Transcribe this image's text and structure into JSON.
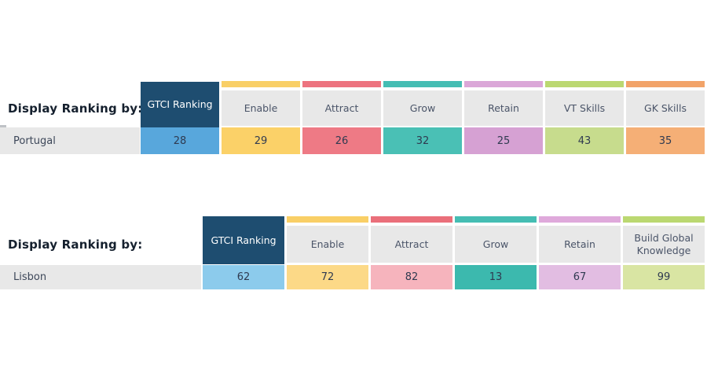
{
  "background": "#ffffff",
  "tables": [
    {
      "label": "Display Ranking by:",
      "row_label": "Portugal",
      "selected_column": "GTCI Ranking",
      "columns": [
        {
          "id": "gtci-ranking",
          "label": "GTCI Ranking",
          "value": "28",
          "selected": true,
          "header_bg": "#1e4d70",
          "value_bg": "#58a7dc"
        },
        {
          "id": "enable",
          "label": "Enable",
          "value": "29",
          "bar": "#f9cf66",
          "value_bg": "#fbd168"
        },
        {
          "id": "attract",
          "label": "Attract",
          "value": "26",
          "bar": "#ed737f",
          "value_bg": "#ee7a85"
        },
        {
          "id": "grow",
          "label": "Grow",
          "value": "32",
          "bar": "#45bdb3",
          "value_bg": "#4ac0b5"
        },
        {
          "id": "retain",
          "label": "Retain",
          "value": "25",
          "bar": "#dba7d8",
          "value_bg": "#d6a1d3"
        },
        {
          "id": "vt-skills",
          "label": "VT Skills",
          "value": "43",
          "bar": "#bbd871",
          "value_bg": "#c7dc8d"
        },
        {
          "id": "gk-skills",
          "label": "GK Skills",
          "value": "35",
          "bar": "#f2a369",
          "value_bg": "#f5af76"
        }
      ]
    },
    {
      "label": "Display Ranking by:",
      "row_label": "Lisbon",
      "selected_column": "GTCI Ranking",
      "columns": [
        {
          "id": "gtci-ranking",
          "label": "GTCI Ranking",
          "value": "62",
          "selected": true,
          "header_bg": "#1e4d70",
          "value_bg": "#8ccbec"
        },
        {
          "id": "enable",
          "label": "Enable",
          "value": "72",
          "bar": "#f9cf66",
          "value_bg": "#fcd987"
        },
        {
          "id": "attract",
          "label": "Attract",
          "value": "82",
          "bar": "#ea6f7a",
          "value_bg": "#f6b4bd"
        },
        {
          "id": "grow",
          "label": "Grow",
          "value": "13",
          "bar": "#45bdb3",
          "value_bg": "#3cb9ae"
        },
        {
          "id": "retain",
          "label": "Retain",
          "value": "67",
          "bar": "#dfa9db",
          "value_bg": "#e2bde2"
        },
        {
          "id": "build-global-knowledge",
          "label": "Build Global Knowledge",
          "value": "99",
          "bar": "#bbd871",
          "value_bg": "#d9e5a3"
        }
      ]
    }
  ]
}
